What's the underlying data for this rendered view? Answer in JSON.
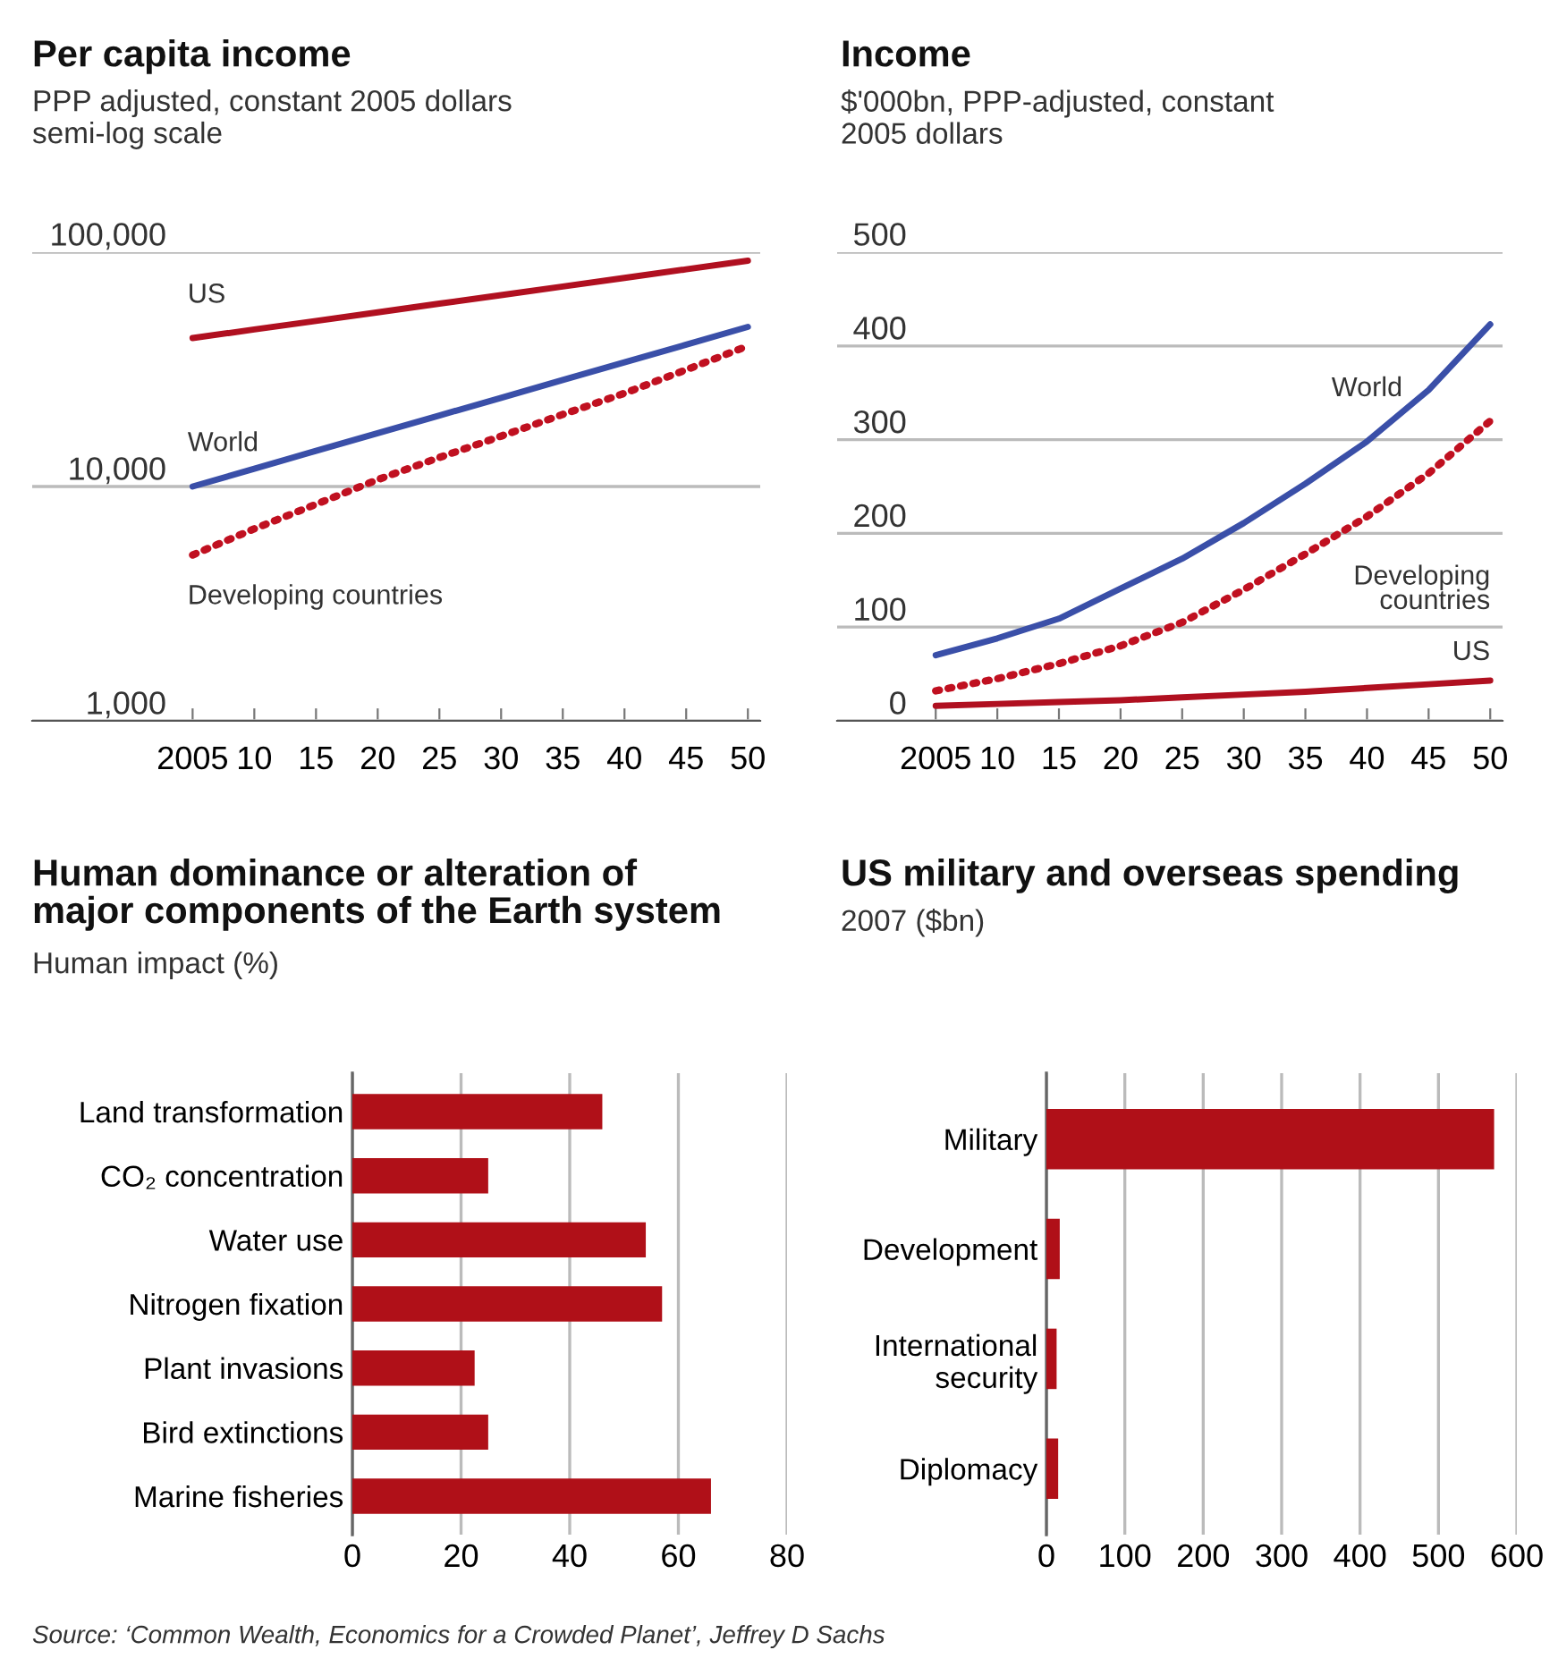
{
  "chart_data": [
    {
      "type": "line",
      "title": "Per capita income",
      "subtitle": "PPP adjusted, constant 2005 dollars\nsemi-log scale",
      "log": true,
      "grid": "y",
      "x": [
        2005,
        2010,
        2015,
        2020,
        2025,
        2030,
        2035,
        2040,
        2045,
        2050
      ],
      "xlim": [
        1992,
        2051
      ],
      "xticks": [
        {
          "value": 2005,
          "label": "2005"
        },
        {
          "value": 2010,
          "label": "10"
        },
        {
          "value": 2015,
          "label": "15"
        },
        {
          "value": 2020,
          "label": "20"
        },
        {
          "value": 2025,
          "label": "25"
        },
        {
          "value": 2030,
          "label": "30"
        },
        {
          "value": 2035,
          "label": "35"
        },
        {
          "value": 2040,
          "label": "40"
        },
        {
          "value": 2045,
          "label": "45"
        },
        {
          "value": 2050,
          "label": "50"
        }
      ],
      "ylim": [
        1000,
        100000
      ],
      "yticks": [
        {
          "value": 1000,
          "label": "1,000"
        },
        {
          "value": 10000,
          "label": "10,000"
        },
        {
          "value": 100000,
          "label": "100,000"
        }
      ],
      "series": [
        {
          "name": "US",
          "color": "#b01020",
          "line_style": "solid",
          "values": [
            43000,
            46800,
            50900,
            55400,
            60300,
            65600,
            71400,
            77700,
            84500,
            92000
          ]
        },
        {
          "name": "World",
          "color": "#3a4fa8",
          "line_style": "solid",
          "values": [
            10000,
            11900,
            14200,
            16900,
            20100,
            23900,
            28500,
            33900,
            40300,
            48000
          ]
        },
        {
          "name": "Developing countries",
          "color": "#c01020",
          "line_style": "dotted",
          "values": [
            5100,
            6600,
            8400,
            10700,
            13300,
            16400,
            20300,
            25000,
            31500,
            39800
          ]
        }
      ]
    },
    {
      "type": "line",
      "title": "Income",
      "subtitle": "$'000bn, PPP-adjusted, constant\n2005 dollars",
      "grid": "y",
      "x": [
        2005,
        2010,
        2015,
        2020,
        2025,
        2030,
        2035,
        2040,
        2045,
        2050
      ],
      "xlim": [
        1997,
        2051
      ],
      "xticks": [
        {
          "value": 2005,
          "label": "2005"
        },
        {
          "value": 2010,
          "label": "10"
        },
        {
          "value": 2015,
          "label": "15"
        },
        {
          "value": 2020,
          "label": "20"
        },
        {
          "value": 2025,
          "label": "25"
        },
        {
          "value": 2030,
          "label": "30"
        },
        {
          "value": 2035,
          "label": "35"
        },
        {
          "value": 2040,
          "label": "40"
        },
        {
          "value": 2045,
          "label": "45"
        },
        {
          "value": 2050,
          "label": "50"
        }
      ],
      "ylim": [
        0,
        500
      ],
      "yticks": [
        0,
        100,
        200,
        300,
        400,
        500
      ],
      "series": [
        {
          "name": "World",
          "color": "#3a4fa8",
          "line_style": "solid",
          "values": [
            70,
            88,
            109,
            141,
            173,
            211,
            253,
            298,
            353,
            423
          ]
        },
        {
          "name": "Developing\ncountries",
          "color": "#c01020",
          "line_style": "dotted",
          "values": [
            32,
            45,
            61,
            80,
            105,
            140,
            178,
            218,
            264,
            320
          ]
        },
        {
          "name": "US",
          "color": "#b01020",
          "line_style": "solid",
          "values": [
            16,
            18,
            20,
            22,
            25,
            28,
            31,
            35,
            39,
            43
          ]
        }
      ]
    },
    {
      "type": "bar",
      "orientation": "horizontal",
      "title": "Human dominance or alteration of\nmajor components of the Earth system",
      "subtitle": "Human impact (%)",
      "grid": "x",
      "categories": [
        "Land transformation",
        "CO₂ concentration",
        "Water use",
        "Nitrogen fixation",
        "Plant invasions",
        "Bird extinctions",
        "Marine fisheries"
      ],
      "values": [
        46,
        25,
        54,
        57,
        22.5,
        25,
        66
      ],
      "color": "#b01018",
      "xlim": [
        0,
        80
      ],
      "xticks": [
        0,
        20,
        40,
        60,
        80
      ]
    },
    {
      "type": "bar",
      "orientation": "horizontal",
      "title": "US military and overseas spending",
      "subtitle": "2007 ($bn)",
      "grid": "x",
      "categories": [
        "Military",
        "Development",
        "International\nsecurity",
        "Diplomacy"
      ],
      "values": [
        571,
        17,
        13,
        15
      ],
      "color": "#b01018",
      "xlim": [
        0,
        600
      ],
      "xticks": [
        0,
        100,
        200,
        300,
        400,
        500,
        600
      ],
      "annotations": [
        "Source: ‘Common Wealth, Economics for a Crowded Planet’, Jeffrey D Sachs"
      ]
    }
  ]
}
